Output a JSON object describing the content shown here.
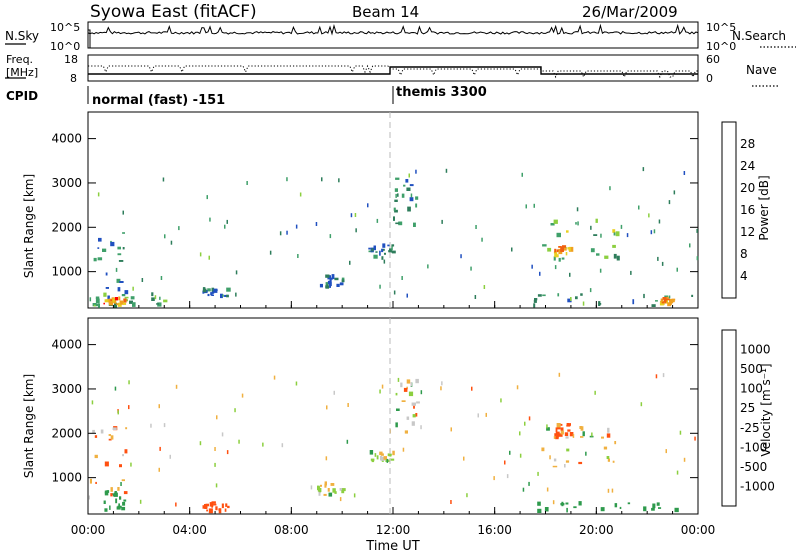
{
  "header": {
    "station": "Syowa East (fitACF)",
    "beam": "Beam 14",
    "date": "26/Mar/2009"
  },
  "status_panels": {
    "nsky_label": "N.Sky",
    "nsky_ticks": [
      "10^5",
      "10^0"
    ],
    "nsearch_label": "N.Search",
    "nsearch_ticks": [
      "10^5",
      "10^0"
    ],
    "freq_label_line1": "Freq.",
    "freq_label_line2": "[MHz]",
    "freq_ticks": [
      "18",
      "8"
    ],
    "nave_label": "Nave",
    "nave_ticks": [
      "60",
      "0"
    ],
    "cpid_label": "CPID",
    "cpid_segments": [
      {
        "start_hour": 0,
        "label": "normal (fast) -151"
      },
      {
        "start_hour": 12,
        "label": "themis 3300"
      }
    ]
  },
  "colors": {
    "power_scale": [
      "#1010ff",
      "#2050c0",
      "#2e7d5b",
      "#3fa06a",
      "#8ccf3f",
      "#e8d020",
      "#f0a020",
      "#f06010",
      "#ff0000"
    ],
    "velocity_scale": [
      "#ff0000",
      "#ff5010",
      "#ff9020",
      "#f0b040",
      "#c8c8c8",
      "#c8c8c8",
      "#8ccf3f",
      "#2e9a4c",
      "#2a6ab0",
      "#1030c0"
    ]
  },
  "chart_data": [
    {
      "type": "heatmap",
      "name": "power",
      "ylabel": "Slant Range [km]",
      "yticks": [
        "1000",
        "2000",
        "3000",
        "4000"
      ],
      "ylim": [
        180,
        4600
      ],
      "xlim_hours": [
        0,
        24
      ],
      "colorbar_label": "Power [dB]",
      "colorbar_ticks": [
        "4",
        "8",
        "12",
        "16",
        "20",
        "24",
        "28"
      ],
      "colorbar_range": [
        0,
        32
      ],
      "echo_regions": [
        {
          "t0": 0.0,
          "t1": 1.5,
          "r0": 400,
          "r1": 1900,
          "level": 8
        },
        {
          "t0": 0.0,
          "t1": 3.0,
          "r0": 200,
          "r1": 500,
          "level": 12
        },
        {
          "t0": 0.6,
          "t1": 1.4,
          "r0": 250,
          "r1": 400,
          "level": 26
        },
        {
          "t0": 4.5,
          "t1": 5.5,
          "r0": 450,
          "r1": 600,
          "level": 8
        },
        {
          "t0": 9.0,
          "t1": 10.0,
          "r0": 600,
          "r1": 900,
          "level": 8
        },
        {
          "t0": 11.0,
          "t1": 12.0,
          "r0": 1300,
          "r1": 1600,
          "level": 8
        },
        {
          "t0": 12.0,
          "t1": 13.0,
          "r0": 2000,
          "r1": 3200,
          "level": 8
        },
        {
          "t0": 17.8,
          "t1": 21.0,
          "r0": 1200,
          "r1": 2200,
          "level": 14
        },
        {
          "t0": 18.3,
          "t1": 19.0,
          "r0": 1350,
          "r1": 1600,
          "level": 24
        },
        {
          "t0": 17.5,
          "t1": 24.0,
          "r0": 200,
          "r1": 500,
          "level": 10
        },
        {
          "t0": 22.5,
          "t1": 23.0,
          "r0": 250,
          "r1": 400,
          "level": 24
        }
      ]
    },
    {
      "type": "heatmap",
      "name": "velocity",
      "ylabel": "Slant Range [km]",
      "yticks": [
        "1000",
        "2000",
        "3000",
        "4000"
      ],
      "ylim": [
        180,
        4600
      ],
      "xlim_hours": [
        0,
        24
      ],
      "xticks": [
        "00:00",
        "04:00",
        "08:00",
        "12:00",
        "16:00",
        "20:00",
        "00:00"
      ],
      "xlabel": "Time UT",
      "colorbar_label": "Velocity [m s⁻¹]",
      "colorbar_ticks": [
        "1000",
        "500",
        "100",
        "25",
        "-25",
        "-100",
        "-500",
        "-1000"
      ],
      "echo_regions": [
        {
          "t0": 0.0,
          "t1": 1.5,
          "r0": 400,
          "r1": 2200,
          "v": -100
        },
        {
          "t0": 0.6,
          "t1": 1.4,
          "r0": 250,
          "r1": 700,
          "v": 300
        },
        {
          "t0": 4.5,
          "t1": 5.5,
          "r0": 250,
          "r1": 450,
          "v": -300
        },
        {
          "t0": 9.0,
          "t1": 10.0,
          "r0": 600,
          "r1": 900,
          "v": 0
        },
        {
          "t0": 11.0,
          "t1": 12.0,
          "r0": 1300,
          "r1": 1600,
          "v": 0
        },
        {
          "t0": 12.0,
          "t1": 13.0,
          "r0": 2000,
          "r1": 3200,
          "v": 0
        },
        {
          "t0": 17.8,
          "t1": 21.0,
          "r0": 1200,
          "r1": 2200,
          "v": 0
        },
        {
          "t0": 18.3,
          "t1": 19.0,
          "r0": 1900,
          "r1": 2200,
          "v": -200
        },
        {
          "t0": 17.5,
          "t1": 24.0,
          "r0": 250,
          "r1": 450,
          "v": 300
        }
      ]
    }
  ]
}
